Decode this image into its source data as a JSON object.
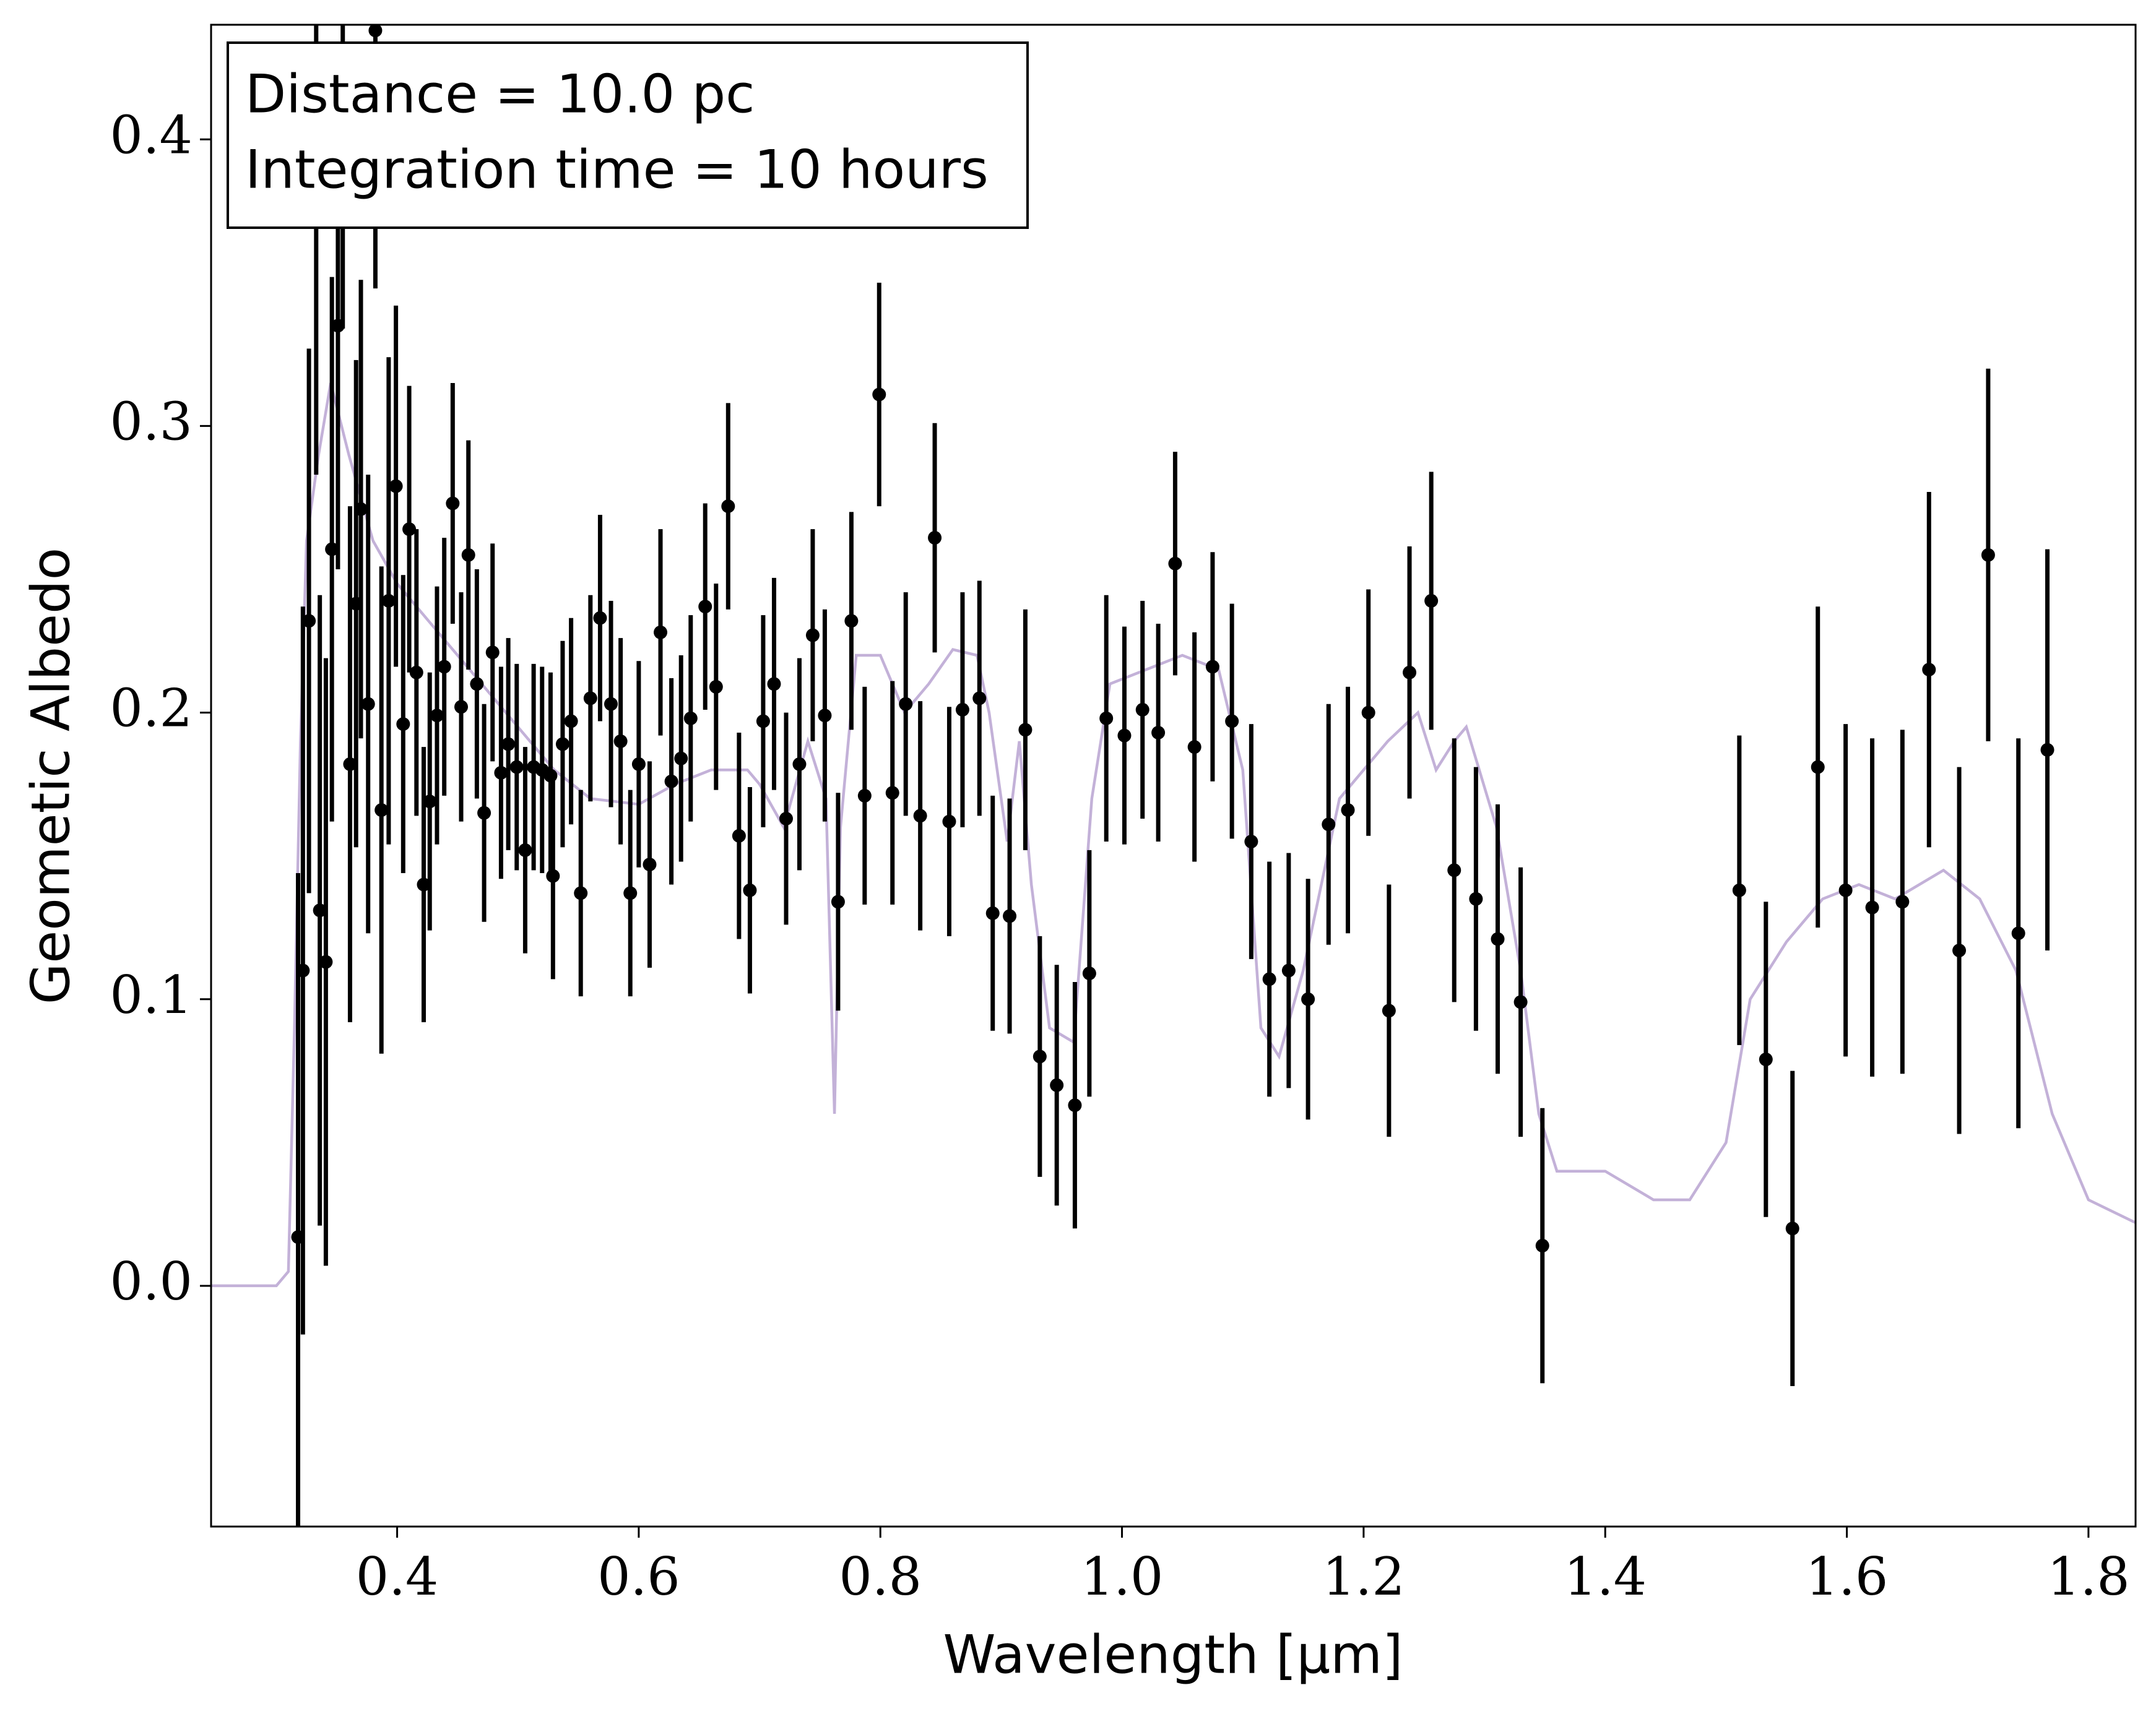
{
  "chart_data": {
    "type": "errorbar",
    "xlabel": "Wavelength [μm]",
    "ylabel": "Geometic Albedo",
    "annotations": [
      "Distance = 10.0 pc",
      "Integration time = 10 hours"
    ],
    "xlim": [
      0.246,
      1.839
    ],
    "ylim": [
      -0.084,
      0.44
    ],
    "xticks": [
      0.4,
      0.6,
      0.8,
      {
        "value": 1,
        "label": "1.0"
      },
      1.2,
      1.4,
      1.6,
      1.8
    ],
    "yticks": [
      {
        "value": 0,
        "label": "0.0"
      },
      0.1,
      0.2,
      0.3,
      0.4
    ],
    "model": {
      "color": "#c3b1d8",
      "x": [
        0.246,
        0.3,
        0.31,
        0.315,
        0.32,
        0.325,
        0.335,
        0.345,
        0.36,
        0.38,
        0.4,
        0.43,
        0.46,
        0.5,
        0.53,
        0.56,
        0.6,
        0.63,
        0.66,
        0.69,
        0.7,
        0.72,
        0.74,
        0.755,
        0.762,
        0.767,
        0.78,
        0.8,
        0.82,
        0.84,
        0.86,
        0.88,
        0.89,
        0.905,
        0.915,
        0.925,
        0.94,
        0.96,
        0.975,
        0.99,
        1.02,
        1.05,
        1.08,
        1.1,
        1.115,
        1.13,
        1.15,
        1.18,
        1.22,
        1.245,
        1.26,
        1.275,
        1.285,
        1.31,
        1.33,
        1.345,
        1.36,
        1.4,
        1.44,
        1.47,
        1.5,
        1.52,
        1.55,
        1.58,
        1.61,
        1.64,
        1.68,
        1.71,
        1.74,
        1.77,
        1.8,
        1.839
      ],
      "y": [
        0,
        0,
        0.005,
        0.09,
        0.19,
        0.26,
        0.29,
        0.315,
        0.29,
        0.26,
        0.245,
        0.23,
        0.215,
        0.195,
        0.18,
        0.17,
        0.168,
        0.175,
        0.18,
        0.18,
        0.175,
        0.16,
        0.19,
        0.17,
        0.06,
        0.16,
        0.22,
        0.22,
        0.2,
        0.21,
        0.222,
        0.22,
        0.2,
        0.155,
        0.19,
        0.14,
        0.09,
        0.085,
        0.17,
        0.21,
        0.215,
        0.22,
        0.215,
        0.18,
        0.09,
        0.08,
        0.11,
        0.17,
        0.19,
        0.2,
        0.18,
        0.19,
        0.195,
        0.16,
        0.11,
        0.06,
        0.04,
        0.04,
        0.03,
        0.03,
        0.05,
        0.1,
        0.12,
        0.135,
        0.14,
        0.135,
        0.145,
        0.135,
        0.11,
        0.06,
        0.03,
        0.022
      ]
    },
    "points": {
      "color": "#000000",
      "x": [
        0.318,
        0.322,
        0.327,
        0.333,
        0.336,
        0.341,
        0.346,
        0.351,
        0.355,
        0.361,
        0.366,
        0.37,
        0.376,
        0.382,
        0.387,
        0.393,
        0.399,
        0.405,
        0.41,
        0.416,
        0.422,
        0.427,
        0.433,
        0.439,
        0.446,
        0.453,
        0.459,
        0.466,
        0.472,
        0.479,
        0.486,
        0.492,
        0.499,
        0.506,
        0.513,
        0.52,
        0.527,
        0.529,
        0.537,
        0.544,
        0.552,
        0.56,
        0.568,
        0.577,
        0.585,
        0.593,
        0.6,
        0.609,
        0.618,
        0.627,
        0.635,
        0.643,
        0.655,
        0.664,
        0.674,
        0.683,
        0.692,
        0.703,
        0.712,
        0.722,
        0.733,
        0.744,
        0.754,
        0.765,
        0.776,
        0.787,
        0.799,
        0.81,
        0.821,
        0.833,
        0.845,
        0.857,
        0.868,
        0.882,
        0.893,
        0.907,
        0.92,
        0.932,
        0.946,
        0.961,
        0.973,
        0.987,
        1.002,
        1.017,
        1.03,
        1.044,
        1.06,
        1.075,
        1.091,
        1.107,
        1.122,
        1.138,
        1.154,
        1.171,
        1.187,
        1.204,
        1.221,
        1.238,
        1.256,
        1.275,
        1.293,
        1.311,
        1.33,
        1.348,
        1.511,
        1.533,
        1.555,
        1.576,
        1.599,
        1.621,
        1.646,
        1.668,
        1.693,
        1.717,
        1.742,
        1.766
      ],
      "y": [
        0.017,
        0.11,
        0.232,
        0.373,
        0.131,
        0.113,
        0.257,
        0.335,
        0.424,
        0.182,
        0.238,
        0.271,
        0.203,
        0.438,
        0.166,
        0.239,
        0.279,
        0.196,
        0.264,
        0.214,
        0.14,
        0.169,
        0.199,
        0.216,
        0.273,
        0.202,
        0.255,
        0.21,
        0.165,
        0.221,
        0.179,
        0.189,
        0.181,
        0.152,
        0.181,
        0.18,
        0.178,
        0.143,
        0.189,
        0.197,
        0.137,
        0.205,
        0.233,
        0.203,
        0.19,
        0.137,
        0.182,
        0.147,
        0.228,
        0.176,
        0.184,
        0.198,
        0.237,
        0.209,
        0.272,
        0.157,
        0.138,
        0.197,
        0.21,
        0.163,
        0.182,
        0.227,
        0.199,
        0.134,
        0.232,
        0.171,
        0.311,
        0.172,
        0.203,
        0.164,
        0.261,
        0.162,
        0.201,
        0.205,
        0.13,
        0.129,
        0.194,
        0.08,
        0.07,
        0.063,
        0.109,
        0.198,
        0.192,
        0.201,
        0.193,
        0.252,
        0.188,
        0.216,
        0.197,
        0.155,
        0.107,
        0.11,
        0.1,
        0.161,
        0.166,
        0.2,
        0.096,
        0.214,
        0.239,
        0.145,
        0.135,
        0.121,
        0.099,
        0.014,
        0.138,
        0.079,
        0.02,
        0.181,
        0.138,
        0.132,
        0.134,
        0.215,
        0.117,
        0.255,
        0.123,
        0.187
      ],
      "yerr": [
        0.127,
        0.127,
        0.095,
        0.09,
        0.11,
        0.106,
        0.095,
        0.085,
        0.09,
        0.09,
        0.085,
        0.08,
        0.08,
        0.09,
        0.085,
        0.085,
        0.063,
        0.052,
        0.05,
        0.05,
        0.048,
        0.045,
        0.045,
        0.045,
        0.042,
        0.04,
        0.04,
        0.04,
        0.038,
        0.038,
        0.037,
        0.037,
        0.036,
        0.036,
        0.036,
        0.036,
        0.036,
        0.036,
        0.036,
        0.036,
        0.036,
        0.036,
        0.036,
        0.036,
        0.036,
        0.036,
        0.036,
        0.036,
        0.036,
        0.036,
        0.036,
        0.036,
        0.036,
        0.036,
        0.036,
        0.036,
        0.036,
        0.037,
        0.037,
        0.037,
        0.037,
        0.037,
        0.037,
        0.038,
        0.038,
        0.038,
        0.039,
        0.039,
        0.039,
        0.04,
        0.04,
        0.04,
        0.041,
        0.041,
        0.041,
        0.041,
        0.042,
        0.042,
        0.042,
        0.043,
        0.043,
        0.043,
        0.038,
        0.038,
        0.038,
        0.039,
        0.04,
        0.04,
        0.041,
        0.041,
        0.041,
        0.041,
        0.042,
        0.042,
        0.043,
        0.043,
        0.044,
        0.044,
        0.045,
        0.046,
        0.046,
        0.047,
        0.047,
        0.048,
        0.054,
        0.055,
        0.055,
        0.056,
        0.058,
        0.059,
        0.06,
        0.062,
        0.064,
        0.065,
        0.068,
        0.07
      ]
    }
  }
}
